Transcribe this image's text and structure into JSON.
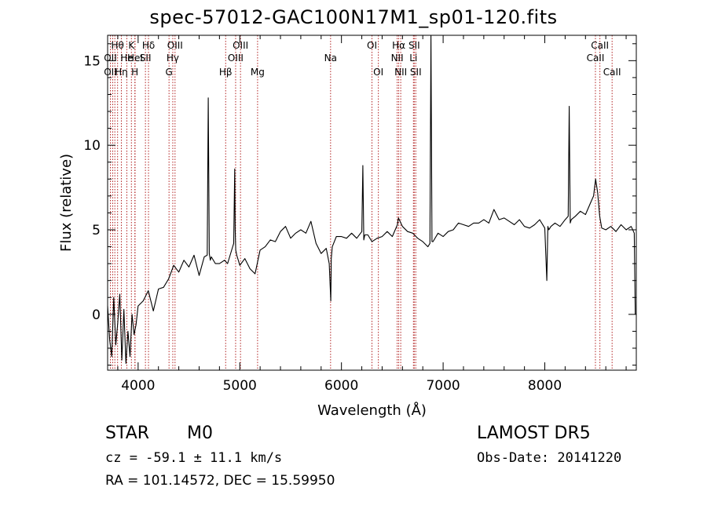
{
  "header": {
    "title": "spec-57012-GAC100N17M1_sp01-120.fits"
  },
  "info": {
    "object_class": "STAR",
    "subclass": "M0",
    "survey": "LAMOST DR5",
    "redshift_text": "cz = -59.1 ± 11.1 km/s",
    "obs_date_text": "Obs-Date: 20141220",
    "coords_text": "RA = 101.14572, DEC =  15.59950"
  },
  "colors": {
    "spectrum": "#000000",
    "line_marker": "#b22222",
    "frame": "#000000"
  },
  "chart_data": {
    "type": "line",
    "xlabel": "Wavelength (Å)",
    "ylabel": "Flux (relative)",
    "xlim": [
      3700,
      8900
    ],
    "ylim": [
      -3.3,
      16.5
    ],
    "xticks": [
      4000,
      5000,
      6000,
      7000,
      8000
    ],
    "yticks": [
      0,
      5,
      10,
      15
    ],
    "series": [
      {
        "x": [
          3700,
          3720,
          3740,
          3760,
          3780,
          3800,
          3820,
          3840,
          3860,
          3880,
          3900,
          3920,
          3940,
          3960,
          3980,
          4000,
          4050,
          4100,
          4150,
          4200,
          4250,
          4300,
          4350,
          4400,
          4450,
          4500,
          4550,
          4600,
          4650,
          4680,
          4690,
          4700,
          4710,
          4720,
          4760,
          4800,
          4850,
          4880,
          4900,
          4920,
          4940,
          4950,
          4955,
          4960,
          4970,
          5000,
          5050,
          5100,
          5150,
          5200,
          5250,
          5300,
          5350,
          5400,
          5450,
          5500,
          5550,
          5600,
          5650,
          5700,
          5750,
          5800,
          5850,
          5880,
          5895,
          5900,
          5910,
          5950,
          6000,
          6050,
          6100,
          6150,
          6200,
          6210,
          6220,
          6230,
          6260,
          6300,
          6350,
          6400,
          6450,
          6500,
          6550,
          6560,
          6600,
          6650,
          6700,
          6750,
          6800,
          6850,
          6870,
          6880,
          6890,
          6900,
          6950,
          7000,
          7050,
          7100,
          7150,
          7200,
          7250,
          7300,
          7350,
          7400,
          7450,
          7500,
          7550,
          7600,
          7650,
          7700,
          7750,
          7800,
          7850,
          7900,
          7950,
          8000,
          8020,
          8030,
          8040,
          8060,
          8100,
          8150,
          8200,
          8230,
          8240,
          8250,
          8260,
          8300,
          8350,
          8400,
          8450,
          8480,
          8500,
          8520,
          8540,
          8560,
          8600,
          8650,
          8700,
          8750,
          8800,
          8850,
          8880,
          8890
        ],
        "y": [
          0.5,
          -1.5,
          -2.5,
          1.0,
          -1.8,
          -0.5,
          1.2,
          -2.7,
          0.3,
          -2.9,
          -1.0,
          -2.5,
          0.0,
          -1.2,
          -0.6,
          0.5,
          0.8,
          1.4,
          0.2,
          1.5,
          1.6,
          2.1,
          2.9,
          2.5,
          3.2,
          2.8,
          3.5,
          2.3,
          3.4,
          3.5,
          12.8,
          3.6,
          3.2,
          3.4,
          3.0,
          3.0,
          3.2,
          3.0,
          3.4,
          3.8,
          4.2,
          8.6,
          5.0,
          3.8,
          3.5,
          2.9,
          3.3,
          2.7,
          2.4,
          3.8,
          4.0,
          4.4,
          4.3,
          4.9,
          5.2,
          4.5,
          4.8,
          5.0,
          4.8,
          5.5,
          4.2,
          3.6,
          3.9,
          3.0,
          0.8,
          3.3,
          4.0,
          4.6,
          4.6,
          4.5,
          4.8,
          4.5,
          4.9,
          8.8,
          4.4,
          4.7,
          4.7,
          4.3,
          4.5,
          4.6,
          4.9,
          4.6,
          5.3,
          5.7,
          5.2,
          4.9,
          4.8,
          4.5,
          4.3,
          4.0,
          4.2,
          16.5,
          4.3,
          4.3,
          4.8,
          4.6,
          4.9,
          5.0,
          5.4,
          5.3,
          5.2,
          5.4,
          5.4,
          5.6,
          5.4,
          6.2,
          5.6,
          5.7,
          5.5,
          5.3,
          5.6,
          5.2,
          5.1,
          5.3,
          5.6,
          5.1,
          2.0,
          5.2,
          5.0,
          5.2,
          5.4,
          5.2,
          5.6,
          5.8,
          12.3,
          5.4,
          5.6,
          5.8,
          6.1,
          5.9,
          6.6,
          7.0,
          8.0,
          7.2,
          5.8,
          5.1,
          5.0,
          5.2,
          4.9,
          5.3,
          5.0,
          5.2,
          4.8,
          0.0
        ]
      }
    ],
    "line_labels": [
      {
        "label": "Hθ",
        "wl": 3798,
        "row": 0
      },
      {
        "label": "OII",
        "wl": 3727,
        "row": 1
      },
      {
        "label": "OII",
        "wl": 3727,
        "row": 2
      },
      {
        "label": "He",
        "wl": 3889,
        "row": 1
      },
      {
        "label": "Hη",
        "wl": 3835,
        "row": 2
      },
      {
        "label": "K",
        "wl": 3934,
        "row": 0
      },
      {
        "label": "HeI",
        "wl": 3970,
        "row": 1
      },
      {
        "label": "H",
        "wl": 3968,
        "row": 2
      },
      {
        "label": "Hδ",
        "wl": 4102,
        "row": 0
      },
      {
        "label": "SII",
        "wl": 4072,
        "row": 1
      },
      {
        "label": "OIII",
        "wl": 4363,
        "row": 0
      },
      {
        "label": "Hγ",
        "wl": 4341,
        "row": 1
      },
      {
        "label": "G",
        "wl": 4304,
        "row": 2
      },
      {
        "label": "Hβ",
        "wl": 4861,
        "row": 2
      },
      {
        "label": "OIII",
        "wl": 5007,
        "row": 0
      },
      {
        "label": "OIII",
        "wl": 4959,
        "row": 1
      },
      {
        "label": "Mg",
        "wl": 5175,
        "row": 2
      },
      {
        "label": "Na",
        "wl": 5893,
        "row": 1
      },
      {
        "label": "OI",
        "wl": 6300,
        "row": 0
      },
      {
        "label": "OI",
        "wl": 6363,
        "row": 2
      },
      {
        "label": "Hα",
        "wl": 6563,
        "row": 0
      },
      {
        "label": "NII",
        "wl": 6548,
        "row": 1
      },
      {
        "label": "NII",
        "wl": 6583,
        "row": 2
      },
      {
        "label": "SII",
        "wl": 6716,
        "row": 0
      },
      {
        "label": "Li",
        "wl": 6708,
        "row": 1
      },
      {
        "label": "SII",
        "wl": 6731,
        "row": 2
      },
      {
        "label": "CaII",
        "wl": 8542,
        "row": 0
      },
      {
        "label": "CaII",
        "wl": 8498,
        "row": 1
      },
      {
        "label": "CaII",
        "wl": 8662,
        "row": 2
      }
    ],
    "marker_lines": [
      3727,
      3750,
      3771,
      3798,
      3835,
      3889,
      3934,
      3968,
      3970,
      4072,
      4102,
      4304,
      4341,
      4363,
      4861,
      4959,
      5007,
      5175,
      5893,
      6300,
      6363,
      6548,
      6563,
      6583,
      6708,
      6716,
      6731,
      8498,
      8542,
      8662
    ],
    "grid": false,
    "legend": "none"
  }
}
